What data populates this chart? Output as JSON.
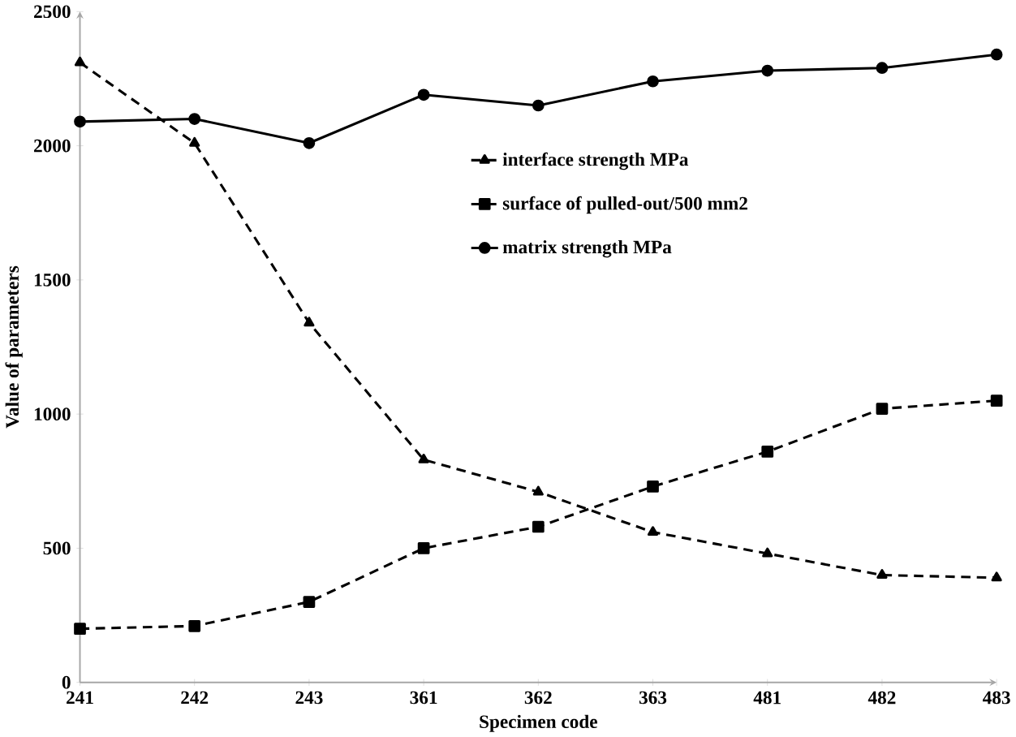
{
  "chart_data": {
    "type": "line",
    "xlabel": "Specimen code",
    "ylabel": "Value of parameters",
    "categories": [
      "241",
      "242",
      "243",
      "361",
      "362",
      "363",
      "481",
      "482",
      "483"
    ],
    "series": [
      {
        "name": "interface strength  MPa",
        "color": "#000000",
        "marker": "triangle",
        "line_style": "dashed",
        "values": [
          2310,
          2010,
          1340,
          830,
          710,
          560,
          480,
          400,
          390
        ]
      },
      {
        "name": "surface of pulled-out/500  mm2",
        "color": "#000000",
        "marker": "square",
        "line_style": "dashed",
        "values": [
          200,
          210,
          300,
          500,
          580,
          730,
          860,
          1020,
          1050
        ]
      },
      {
        "name": "matrix strength  MPa",
        "color": "#000000",
        "marker": "circle",
        "line_style": "solid",
        "values": [
          2090,
          2100,
          2010,
          2190,
          2150,
          2240,
          2280,
          2290,
          2340
        ]
      }
    ],
    "ylim": [
      0,
      2500
    ],
    "yticks": [
      0,
      500,
      1000,
      1500,
      2000,
      2500
    ],
    "grid": false,
    "legend": "top"
  }
}
